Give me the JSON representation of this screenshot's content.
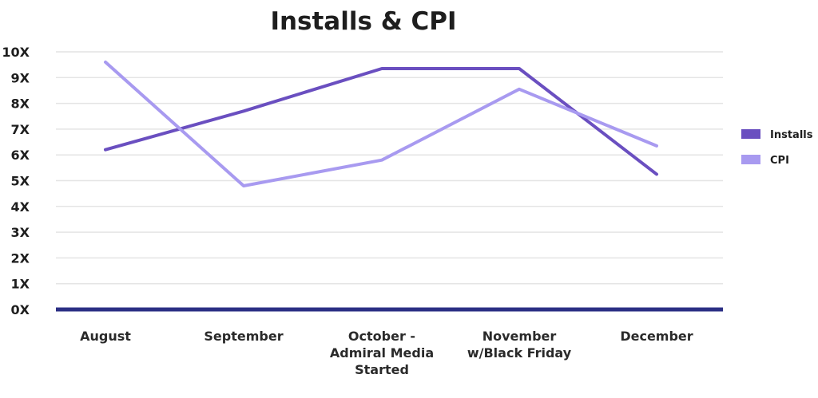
{
  "chart_data": {
    "type": "line",
    "title": "Installs & CPI",
    "categories": [
      [
        "August"
      ],
      [
        "September"
      ],
      [
        "October -",
        "Admiral Media",
        "Started"
      ],
      [
        "November",
        "w/Black Friday"
      ],
      [
        "December"
      ]
    ],
    "ylim": [
      0,
      10
    ],
    "yticks": [
      "0X",
      "1X",
      "2X",
      "3X",
      "4X",
      "5X",
      "6X",
      "7X",
      "8X",
      "9X",
      "10X"
    ],
    "grid": true,
    "legend_position": "right",
    "series": [
      {
        "name": "Installs",
        "color": "#6a4fc0",
        "values": [
          6.2,
          7.7,
          9.35,
          9.35,
          5.25
        ]
      },
      {
        "name": "CPI",
        "color": "#a89af0",
        "values": [
          9.6,
          4.8,
          5.8,
          8.55,
          6.35
        ]
      }
    ]
  }
}
